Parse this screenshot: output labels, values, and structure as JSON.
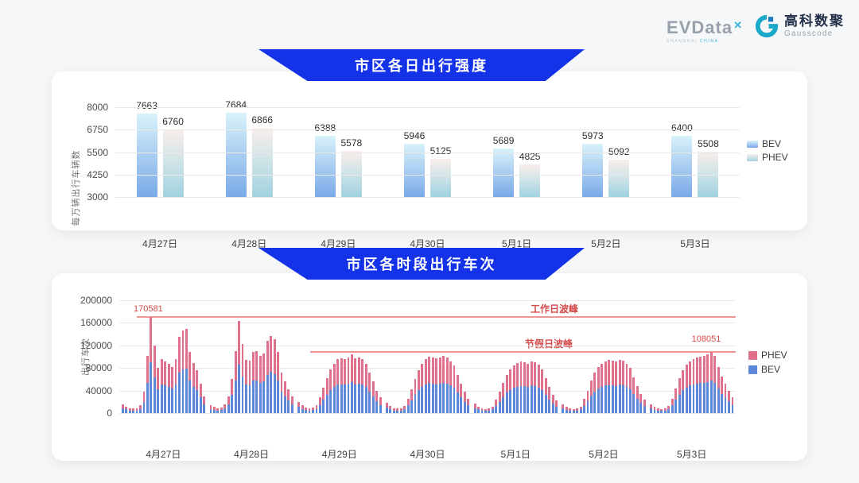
{
  "header": {
    "evdata": {
      "text": "EVData",
      "superscript": "✕",
      "subtext_left": "SHANGHAI",
      "subtext_right": "CHINA"
    },
    "gausscode": {
      "cn": "高科数聚",
      "en": "Gausscode"
    }
  },
  "colors": {
    "banner_blue": "#1433e8",
    "annotation_red": "#d64b4b",
    "annotation_line_red": "#ec9696",
    "bev_bottom_chart": "#5d87d8",
    "phev_bottom_chart": "#e0718c"
  },
  "chart_data": [
    {
      "type": "bar",
      "title": "市区各日出行强度",
      "ylabel": "每万辆出行车辆数",
      "ylim": [
        3000,
        8000
      ],
      "yticks": [
        8000,
        6750,
        5500,
        4250,
        3000
      ],
      "grid": true,
      "legend_position": "right",
      "legend": [
        "BEV",
        "PHEV"
      ],
      "categories": [
        "4月27日",
        "4月28日",
        "4月29日",
        "4月30日",
        "5月1日",
        "5月2日",
        "5月3日"
      ],
      "series": [
        {
          "name": "BEV",
          "gradient": [
            "#d9f2fa",
            "#79a9e8"
          ],
          "values": [
            7663,
            7684,
            6388,
            5946,
            5689,
            5973,
            6400
          ]
        },
        {
          "name": "PHEV",
          "gradient": [
            "#f9edea",
            "#d2e4e8 45%",
            "#a0d2e0"
          ],
          "values": [
            6760,
            6866,
            5578,
            5125,
            4825,
            5092,
            5508
          ]
        }
      ]
    },
    {
      "type": "bar",
      "stacked": true,
      "title": "市区各时段出行车次",
      "ylabel": "出行车次",
      "ylim": [
        0,
        200000
      ],
      "yticks": [
        200000,
        160000,
        120000,
        80000,
        40000,
        0
      ],
      "grid": true,
      "legend_position": "right",
      "legend": [
        "PHEV",
        "BEV"
      ],
      "categories": [
        "4月27日",
        "4月28日",
        "4月29日",
        "4月30日",
        "5月1日",
        "5月2日",
        "5月3日"
      ],
      "hours_per_day": 24,
      "annotations": {
        "workday_peak": {
          "label": "工作日波峰",
          "value": 170581,
          "value_label": "170581"
        },
        "holiday_peak": {
          "label": "节假日波峰",
          "value": 108051,
          "value_label": "108051"
        }
      },
      "series": [
        {
          "name": "BEV",
          "color": "#5d87d8",
          "days": [
            [
              8500,
              6400,
              4800,
              4200,
              4800,
              7400,
              20100,
              54100,
              90400,
              63600,
              42900,
              50900,
              48800,
              46600,
              43500,
              50900,
              71600,
              77400,
              79000,
              57800,
              47200,
              40300,
              27600,
              15900
            ],
            [
              7400,
              5800,
              4800,
              5300,
              8500,
              15900,
              31800,
              58300,
              86400,
              65200,
              50400,
              49300,
              57200,
              58300,
              53500,
              56200,
              67800,
              72600,
              69400,
              57200,
              38200,
              29700,
              22300,
              15900
            ],
            [
              10600,
              7400,
              5300,
              4800,
              5300,
              7400,
              14800,
              23900,
              32900,
              41300,
              46600,
              50400,
              51400,
              50900,
              51900,
              55100,
              51400,
              52500,
              50900,
              46600,
              38200,
              29700,
              21200,
              14800
            ],
            [
              9500,
              6900,
              4800,
              4200,
              4800,
              6900,
              13800,
              22300,
              31800,
              40300,
              46600,
              50900,
              53000,
              51900,
              51400,
              52500,
              54100,
              51900,
              48800,
              44500,
              36000,
              27600,
              20100,
              13800
            ],
            [
              9000,
              6400,
              4200,
              3700,
              4200,
              6400,
              12700,
              20100,
              28600,
              36000,
              41300,
              45100,
              47200,
              48200,
              47700,
              46600,
              48800,
              47700,
              45600,
              41300,
              32900,
              24400,
              17000,
              11700
            ],
            [
              8500,
              5800,
              4200,
              3700,
              4200,
              6400,
              13200,
              21200,
              30700,
              38200,
              43500,
              46600,
              48800,
              49800,
              49300,
              48200,
              50400,
              49300,
              46600,
              42400,
              33900,
              25400,
              18000,
              12700
            ],
            [
              8000,
              5800,
              4200,
              3700,
              4200,
              6900,
              13800,
              23300,
              32900,
              40300,
              45600,
              48800,
              50900,
              51900,
              53000,
              54100,
              55100,
              57300,
              53500,
              43500,
              34500,
              27600,
              21200,
              14800
            ]
          ]
        },
        {
          "name": "PHEV",
          "color": "#e0718c",
          "days": [
            [
              7500,
              5600,
              4200,
              3800,
              4200,
              6600,
              17900,
              47900,
              80181,
              56400,
              38100,
              45100,
              43200,
              41400,
              38500,
              45100,
              63400,
              68600,
              70000,
              51200,
              41800,
              35700,
              24400,
              14100
            ],
            [
              6600,
              5200,
              4200,
              4700,
              7500,
              14100,
              28200,
              51700,
              76600,
              57800,
              44600,
              43700,
              50800,
              51700,
              47500,
              49800,
              60200,
              64400,
              61600,
              50800,
              33800,
              26300,
              19700,
              14100
            ],
            [
              9400,
              6600,
              4700,
              4200,
              4700,
              6600,
              13200,
              21100,
              29100,
              36700,
              41400,
              44700,
              45600,
              45100,
              46100,
              48900,
              45600,
              46500,
              45100,
              41400,
              33800,
              26300,
              18800,
              13200
            ],
            [
              8500,
              6100,
              4200,
              3800,
              4200,
              6100,
              12200,
              19700,
              28200,
              35700,
              41400,
              45100,
              47000,
              46100,
              45600,
              46500,
              47900,
              46100,
              43200,
              39500,
              32000,
              24400,
              17900,
              12200
            ],
            [
              8000,
              5600,
              3800,
              3300,
              3800,
              5600,
              11300,
              17900,
              25400,
              32000,
              36700,
              40000,
              41800,
              42800,
              42300,
              41400,
              43200,
              42300,
              40400,
              36700,
              29100,
              21600,
              15000,
              10300
            ],
            [
              7500,
              5200,
              3800,
              3300,
              3800,
              5600,
              11800,
              18800,
              27300,
              33800,
              38500,
              41400,
              43200,
              44200,
              43700,
              42800,
              44600,
              43700,
              41400,
              37600,
              30100,
              22600,
              16000,
              11300
            ],
            [
              7000,
              5200,
              3800,
              3300,
              3800,
              6100,
              12200,
              20700,
              29100,
              35700,
              40400,
              43200,
              45100,
              46100,
              47000,
              47900,
              48900,
              50751,
              47500,
              38500,
              30500,
              24400,
              18800,
              13200
            ]
          ]
        }
      ]
    }
  ]
}
